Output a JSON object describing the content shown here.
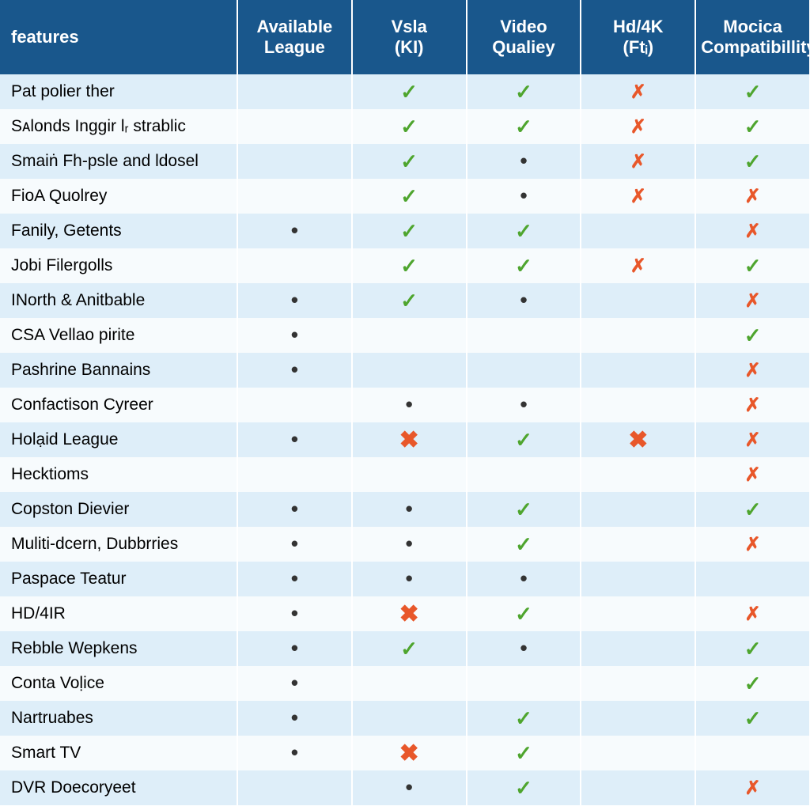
{
  "colors": {
    "header_bg": "#19578c",
    "header_fg": "#ffffff",
    "row_a": "#deeef9",
    "row_b": "#f7fbfd",
    "check": "#4ea52e",
    "cross": "#e8572a",
    "dot": "#333333"
  },
  "columns": [
    {
      "key": "feature",
      "label_line1": "features",
      "label_line2": ""
    },
    {
      "key": "available",
      "label_line1": "Available",
      "label_line2": "League"
    },
    {
      "key": "vsla",
      "label_line1": "Vsla",
      "label_line2": "(KI)"
    },
    {
      "key": "video",
      "label_line1": "Video",
      "label_line2": "Qualiey"
    },
    {
      "key": "hd4k",
      "label_line1": "Hd/4K",
      "label_line2": "(Ftᵢ)"
    },
    {
      "key": "mocica",
      "label_line1": "Mocica",
      "label_line2": "Compatibillity"
    }
  ],
  "rows": [
    {
      "feature": "Pat polier ther",
      "available": "",
      "vsla": "check",
      "video": "check",
      "hd4k": "cross",
      "mocica": "check"
    },
    {
      "feature": "Sᴀlonds Inggir lᵣ strablic",
      "available": "",
      "vsla": "check",
      "video": "check",
      "hd4k": "cross",
      "mocica": "check"
    },
    {
      "feature": "Smaiṅ Fh-psle and ldosel",
      "available": "",
      "vsla": "check",
      "video": "dot",
      "hd4k": "cross",
      "mocica": "check"
    },
    {
      "feature": "FioA Quolrey",
      "available": "",
      "vsla": "check",
      "video": "dot",
      "hd4k": "cross",
      "mocica": "cross"
    },
    {
      "feature": "Fanily, Getents",
      "available": "dot",
      "vsla": "check",
      "video": "check",
      "hd4k": "",
      "mocica": "cross"
    },
    {
      "feature": "Jobi Filergolls",
      "available": "",
      "vsla": "check",
      "video": "check",
      "hd4k": "cross",
      "mocica": "check"
    },
    {
      "feature": "INorth & Anitbable",
      "available": "dot",
      "vsla": "check",
      "video": "dot",
      "hd4k": "",
      "mocica": "cross"
    },
    {
      "feature": "CSA Vellao pirite",
      "available": "dot",
      "vsla": "",
      "video": "",
      "hd4k": "",
      "mocica": "check"
    },
    {
      "feature": "Pashrine Bannains",
      "available": "dot",
      "vsla": "",
      "video": "",
      "hd4k": "",
      "mocica": "cross"
    },
    {
      "feature": "Confactison Cyreer",
      "available": "",
      "vsla": "dot",
      "video": "dot",
      "hd4k": "",
      "mocica": "cross"
    },
    {
      "feature": "Holạid League",
      "available": "dot",
      "vsla": "crossbig",
      "video": "check",
      "hd4k": "crossbig",
      "mocica": "cross"
    },
    {
      "feature": "Hecktioms",
      "available": "",
      "vsla": "",
      "video": "",
      "hd4k": "",
      "mocica": "cross"
    },
    {
      "feature": "Copston Dievier",
      "available": "dot",
      "vsla": "dot",
      "video": "check",
      "hd4k": "",
      "mocica": "check"
    },
    {
      "feature": "Muliti-dcern, Dubbrries",
      "available": "dot",
      "vsla": "dot",
      "video": "check",
      "hd4k": "",
      "mocica": "cross"
    },
    {
      "feature": "Paspace Teatur",
      "available": "dot",
      "vsla": "dot",
      "video": "dot",
      "hd4k": "",
      "mocica": ""
    },
    {
      "feature": "HD/4IR",
      "available": "dot",
      "vsla": "crossbig",
      "video": "check",
      "hd4k": "",
      "mocica": "cross"
    },
    {
      "feature": "Rebble Wepkens",
      "available": "dot",
      "vsla": "check",
      "video": "dot",
      "hd4k": "",
      "mocica": "check"
    },
    {
      "feature": "Conta Voḷice",
      "available": "dot",
      "vsla": "",
      "video": "",
      "hd4k": "",
      "mocica": "check"
    },
    {
      "feature": "Nartruabes",
      "available": "dot",
      "vsla": "",
      "video": "check",
      "hd4k": "",
      "mocica": "check"
    },
    {
      "feature": "Smart TV",
      "available": "dot",
      "vsla": "crossbig",
      "video": "check",
      "hd4k": "",
      "mocica": ""
    },
    {
      "feature": "DVR Doecoryeet",
      "available": "",
      "vsla": "dot",
      "video": "check",
      "hd4k": "",
      "mocica": "cross"
    }
  ]
}
